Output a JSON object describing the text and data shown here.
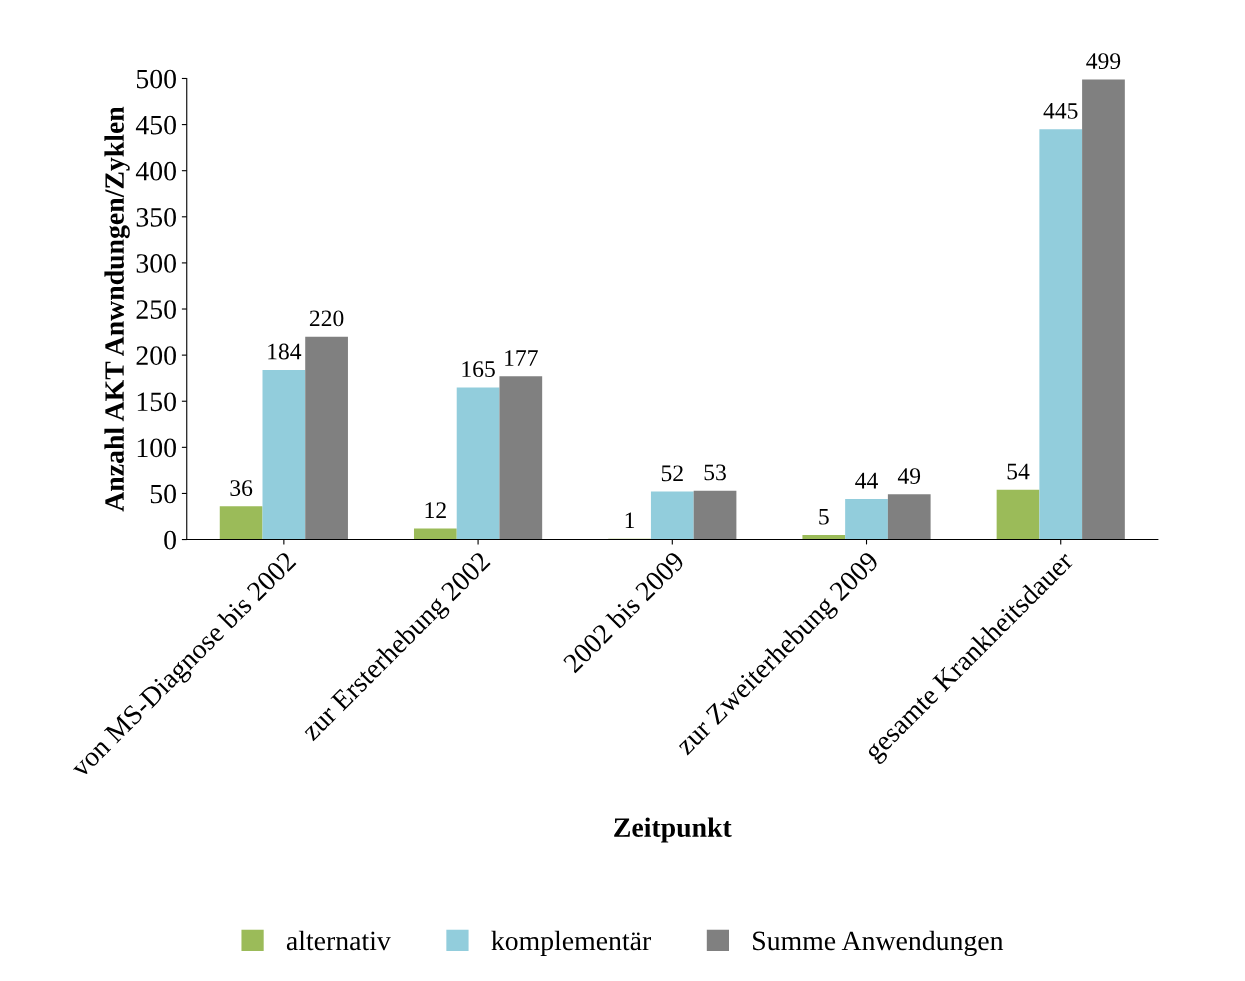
{
  "chart_data": {
    "type": "bar",
    "xlabel": "Zeitpunkt",
    "ylabel": "Anzahl AKT Anwndungen/Zyklen",
    "categories": [
      "von MS-Diagnose bis 2002",
      "zur Ersterhebung 2002",
      "2002 bis 2009",
      "zur Zweiterhebung 2009",
      "gesamte Krankheitsdauer"
    ],
    "series": [
      {
        "name": "alternativ",
        "color": "#9bbb59",
        "values": [
          36,
          12,
          1,
          5,
          54
        ]
      },
      {
        "name": "komplementär",
        "color": "#92cddc",
        "values": [
          184,
          165,
          52,
          44,
          445
        ]
      },
      {
        "name": "Summe Anwendungen",
        "color": "#808080",
        "values": [
          220,
          177,
          53,
          49,
          499
        ]
      }
    ],
    "ylim": [
      0,
      500
    ],
    "yticks": [
      0,
      50,
      100,
      150,
      200,
      250,
      300,
      350,
      400,
      450,
      500
    ],
    "data_labels": true,
    "grid": false,
    "legend": "bottom"
  }
}
